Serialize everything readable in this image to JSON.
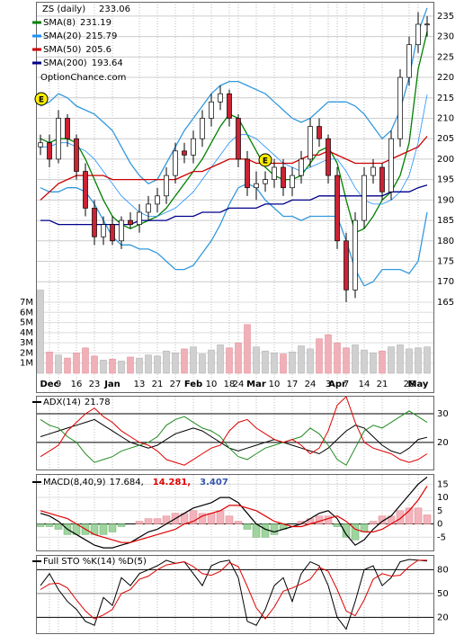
{
  "chart_data": [
    {
      "type": "candlestick",
      "title": "ZS (daily)",
      "watermark": "OptionChance.com",
      "annotations": [
        "E",
        "E"
      ],
      "categories": [
        null,
        "Dec",
        "9",
        null,
        "16",
        null,
        "23",
        null,
        "Jan",
        null,
        null,
        "13",
        null,
        "21",
        null,
        "27",
        null,
        "Feb",
        null,
        "10",
        null,
        "18",
        "24",
        null,
        "Mar",
        null,
        "10",
        null,
        "17",
        null,
        "24",
        null,
        "3",
        "Apr",
        "7",
        null,
        "14",
        null,
        "21",
        null,
        null,
        "28",
        "May",
        null
      ],
      "open": [
        203,
        204,
        200,
        210,
        205,
        197,
        188,
        181,
        184,
        180,
        185,
        184,
        187,
        189,
        191,
        196,
        202,
        201,
        205,
        210,
        214,
        216,
        210,
        200,
        193,
        194,
        195,
        198,
        193,
        196,
        200,
        208,
        205,
        196,
        180,
        168,
        185,
        196,
        198,
        192,
        205,
        220,
        228,
        233
      ],
      "high": [
        206,
        206,
        212,
        211,
        206,
        199,
        190,
        186,
        186,
        186,
        187,
        189,
        191,
        193,
        198,
        204,
        204,
        207,
        212,
        216,
        218,
        217,
        211,
        202,
        197,
        197,
        200,
        200,
        198,
        202,
        210,
        210,
        206,
        198,
        182,
        187,
        198,
        200,
        199,
        207,
        222,
        230,
        236,
        235
      ],
      "low": [
        201,
        198,
        199,
        203,
        195,
        186,
        179,
        179,
        179,
        178,
        183,
        182,
        185,
        187,
        189,
        194,
        199,
        199,
        203,
        208,
        212,
        208,
        198,
        191,
        190,
        192,
        193,
        191,
        191,
        194,
        198,
        203,
        194,
        178,
        165,
        166,
        183,
        194,
        190,
        190,
        203,
        218,
        226,
        230
      ],
      "close": [
        204,
        200,
        210,
        205,
        197,
        188,
        181,
        184,
        180,
        185,
        184,
        187,
        189,
        191,
        196,
        202,
        201,
        205,
        210,
        214,
        216,
        210,
        200,
        193,
        194,
        195,
        198,
        193,
        196,
        200,
        208,
        205,
        196,
        180,
        168,
        185,
        196,
        198,
        192,
        205,
        220,
        228,
        233,
        233.06
      ],
      "series": [
        {
          "name": "SMA(8)",
          "color": "#008000",
          "values": [
            205,
            204,
            205,
            205,
            204,
            200,
            195,
            190,
            186,
            184,
            183,
            184,
            185,
            186,
            188,
            191,
            194,
            197,
            200,
            204,
            208,
            211,
            210,
            206,
            202,
            198,
            196,
            195,
            195,
            196,
            199,
            202,
            203,
            199,
            190,
            182,
            183,
            186,
            190,
            192,
            196,
            204,
            222,
            231.19
          ]
        },
        {
          "name": "SMA(20)",
          "color": "#1e90ff",
          "values": [
            203,
            203,
            204,
            204,
            203,
            202,
            200,
            197,
            194,
            191,
            189,
            187,
            186,
            186,
            187,
            188,
            190,
            192,
            195,
            198,
            201,
            204,
            206,
            206,
            205,
            203,
            201,
            199,
            198,
            197,
            198,
            199,
            200,
            200,
            197,
            193,
            190,
            189,
            189,
            190,
            192,
            196,
            204,
            215.79
          ]
        },
        {
          "name": "SMA(50)",
          "color": "#cc0000",
          "values": [
            190,
            192,
            194,
            195,
            196,
            196,
            196,
            196,
            195,
            195,
            195,
            195,
            195,
            195,
            195,
            195,
            196,
            197,
            197,
            198,
            199,
            200,
            200,
            200,
            199,
            199,
            199,
            199,
            199,
            200,
            201,
            201,
            202,
            201,
            200,
            199,
            199,
            199,
            199,
            200,
            201,
            202,
            203,
            205.6
          ]
        },
        {
          "name": "SMA(200)",
          "color": "#00008b",
          "values": [
            185,
            185,
            184,
            184,
            184,
            184,
            184,
            184,
            184,
            184,
            184,
            185,
            185,
            185,
            185,
            186,
            186,
            186,
            187,
            187,
            187,
            188,
            188,
            188,
            188,
            189,
            189,
            189,
            190,
            190,
            190,
            191,
            191,
            191,
            191,
            191,
            191,
            191,
            191,
            192,
            192,
            192,
            193,
            193.64
          ]
        }
      ],
      "bands": {
        "color": "#3399dd",
        "upper": [
          213,
          214,
          216,
          215,
          213,
          212,
          211,
          209,
          207,
          203,
          199,
          196,
          194,
          195,
          199,
          203,
          207,
          210,
          213,
          216,
          218,
          219,
          219,
          218,
          217,
          216,
          214,
          212,
          210,
          209,
          210,
          212,
          214,
          214,
          214,
          213,
          211,
          208,
          205,
          207,
          212,
          220,
          231,
          237
        ],
        "lower": [
          193,
          192,
          192,
          193,
          193,
          192,
          189,
          185,
          181,
          179,
          179,
          178,
          178,
          177,
          175,
          173,
          173,
          174,
          177,
          180,
          184,
          189,
          193,
          194,
          193,
          190,
          188,
          186,
          186,
          185,
          186,
          186,
          186,
          186,
          180,
          173,
          169,
          170,
          173,
          173,
          173,
          172,
          175,
          187
        ]
      },
      "ylim": [
        147.6,
        238.5
      ],
      "yticks": [
        165,
        170,
        175,
        180,
        185,
        190,
        195,
        200,
        205,
        210,
        215,
        220,
        225,
        230,
        235
      ],
      "volume": {
        "values": [
          8.2,
          2.1,
          1.8,
          1.5,
          2.0,
          2.5,
          1.7,
          1.3,
          1.4,
          1.2,
          1.6,
          1.5,
          1.8,
          1.7,
          2.2,
          2.0,
          2.4,
          2.6,
          1.9,
          2.3,
          2.8,
          2.5,
          3.0,
          4.8,
          2.6,
          2.2,
          2.0,
          1.9,
          2.1,
          2.7,
          2.4,
          3.4,
          3.8,
          3.0,
          2.5,
          2.8,
          2.3,
          2.0,
          2.2,
          2.6,
          2.8,
          2.4,
          2.5,
          2.6
        ],
        "ylim": [
          0,
          36.6
        ],
        "yticks": [
          {
            "value": 1,
            "label": "1M"
          },
          {
            "value": 2,
            "label": "2M"
          },
          {
            "value": 3,
            "label": "3M"
          },
          {
            "value": 4,
            "label": "4M"
          },
          {
            "value": 5,
            "label": "5M"
          },
          {
            "value": 6,
            "label": "6M"
          },
          {
            "value": 7,
            "label": "7M"
          }
        ]
      }
    },
    {
      "type": "line",
      "title": "ADX(14)",
      "ylim": [
        10.5,
        36
      ],
      "yticks": [
        20,
        30
      ],
      "series": [
        {
          "color": "#000000",
          "values": [
            22,
            23,
            24,
            25,
            26,
            27,
            28,
            26,
            24,
            22,
            20,
            19,
            18,
            19,
            21,
            23,
            24,
            25,
            24,
            22,
            20,
            18,
            17,
            18,
            19,
            20,
            21,
            20,
            19,
            18,
            17,
            16,
            18,
            21,
            24,
            26,
            25,
            22,
            19,
            17,
            16,
            18,
            21,
            21.78
          ]
        },
        {
          "color": "#228b22",
          "values": [
            28,
            26,
            25,
            22,
            20,
            16,
            13,
            14,
            15,
            17,
            18,
            19,
            20,
            22,
            26,
            28,
            29,
            27,
            25,
            24,
            22,
            18,
            15,
            14,
            16,
            18,
            19,
            20,
            21,
            22,
            25,
            23,
            19,
            14,
            12,
            18,
            24,
            26,
            25,
            27,
            29,
            31,
            29,
            27
          ]
        },
        {
          "color": "#dd0000",
          "values": [
            15,
            17,
            19,
            24,
            27,
            30,
            32,
            29,
            27,
            24,
            22,
            20,
            19,
            17,
            14,
            13,
            12,
            14,
            16,
            18,
            19,
            24,
            27,
            28,
            25,
            23,
            21,
            20,
            21,
            19,
            16,
            18,
            24,
            33,
            36,
            27,
            20,
            18,
            17,
            16,
            14,
            13,
            14,
            16
          ]
        }
      ]
    },
    {
      "type": "macd",
      "title": "MACD(8,40,9)",
      "legend_texts": [
        "17.684,",
        "14.281,",
        "3.407"
      ],
      "ylim": [
        -10,
        18.5
      ],
      "yticks": [
        -5,
        0,
        5,
        10,
        15
      ],
      "series": [
        {
          "color": "#000000",
          "values": [
            4,
            3,
            1,
            -2,
            -4,
            -6,
            -8,
            -9,
            -9,
            -8,
            -7,
            -5,
            -3,
            -2,
            0,
            2,
            4,
            6,
            7,
            8,
            10,
            10,
            8,
            4,
            0,
            -2,
            -3,
            -2,
            -1,
            0,
            2,
            4,
            5,
            2,
            -4,
            -8,
            -6,
            -2,
            1,
            3,
            7,
            11,
            15,
            17.684
          ]
        },
        {
          "color": "#dd0000",
          "values": [
            5,
            4,
            3,
            2,
            0,
            -2,
            -4,
            -5,
            -6,
            -7,
            -7,
            -6,
            -5,
            -4,
            -3,
            -2,
            0,
            1,
            3,
            4,
            5,
            7,
            7,
            6,
            5,
            3,
            1,
            0,
            -1,
            -1,
            0,
            1,
            2,
            3,
            1,
            -2,
            -3,
            -3,
            -2,
            0,
            2,
            5,
            9,
            14.281
          ]
        },
        {
          "color": "#3355aa",
          "values": [
            -1,
            -1,
            -2,
            -4,
            -4,
            -4,
            -4,
            -4,
            -3,
            -1,
            0,
            1,
            2,
            2,
            3,
            4,
            4,
            5,
            4,
            4,
            5,
            3,
            1,
            -2,
            -5,
            -5,
            -4,
            -2,
            0,
            1,
            2,
            3,
            3,
            -1,
            -5,
            -6,
            -3,
            1,
            3,
            3,
            5,
            6,
            6,
            3.407
          ]
        }
      ]
    },
    {
      "type": "line",
      "title": "Full STO %K(14) %D(5)",
      "ylim": [
        0,
        97.5
      ],
      "yticks": [
        20,
        50,
        80
      ],
      "series": [
        {
          "color": "#000000",
          "values": [
            60,
            75,
            55,
            40,
            30,
            15,
            10,
            45,
            35,
            70,
            60,
            75,
            80,
            85,
            92,
            88,
            90,
            75,
            60,
            85,
            90,
            92,
            70,
            15,
            10,
            30,
            60,
            70,
            40,
            75,
            90,
            85,
            60,
            20,
            5,
            40,
            80,
            85,
            60,
            70,
            90,
            93,
            92,
            91
          ]
        },
        {
          "color": "#dd0000",
          "values": [
            55,
            62,
            63,
            57,
            42,
            28,
            18,
            23,
            30,
            50,
            55,
            68,
            72,
            80,
            86,
            88,
            90,
            84,
            75,
            73,
            78,
            89,
            84,
            59,
            32,
            18,
            33,
            53,
            57,
            62,
            68,
            83,
            78,
            55,
            28,
            22,
            42,
            68,
            75,
            72,
            73,
            84,
            92,
            92
          ]
        }
      ]
    }
  ]
}
